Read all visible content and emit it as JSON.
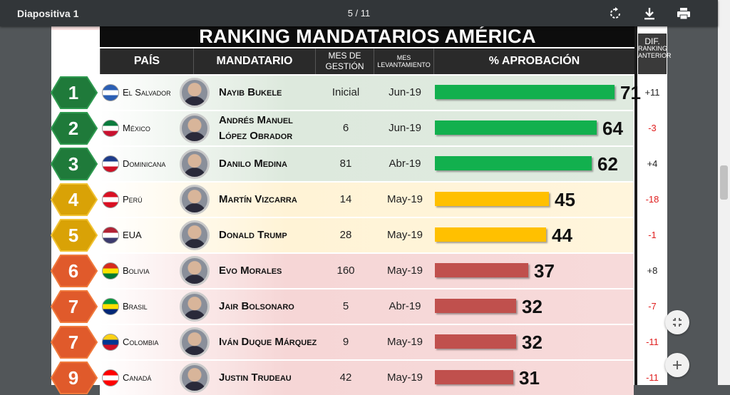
{
  "toolbar": {
    "title": "Diapositiva 1",
    "page_indicator": "5 / 11",
    "icons": [
      "rotate-icon",
      "download-icon",
      "print-icon"
    ]
  },
  "slide": {
    "banner": "RANKING MANDATARIOS AMÉRICA",
    "headers": {
      "pais": "PAÍS",
      "mandatario": "MANDATARIO",
      "mes_gestion": "MES DE GESTIÓN",
      "mes_levantamiento": "MES LEVANTAMIENTO",
      "aprobacion": "% APROBACIÓN",
      "dif_line1": "DIF.",
      "dif_line2": "RANKING ANTERIOR"
    },
    "colors": {
      "green_bar": "#12b04e",
      "yellow_bar": "#ffc000",
      "red_bar": "#c0504d",
      "green_medal": "#1f7a3a",
      "yellow_medal": "#d9a206",
      "red_medal": "#e05a2b",
      "dif_negative": "#e02020"
    },
    "rows": [
      {
        "rank": "1",
        "country": "El Salvador",
        "leader": "Nayib Bukele",
        "gestion": "Inicial",
        "lev": "Jun-19",
        "pct": "71",
        "value": 71,
        "dif": "+11",
        "tier": "green"
      },
      {
        "rank": "2",
        "country": "México",
        "leader": "Andrés Manuel López Obrador",
        "gestion": "6",
        "lev": "Jun-19",
        "pct": "64",
        "value": 64,
        "dif": "-3",
        "tier": "green"
      },
      {
        "rank": "3",
        "country": "Dominicana",
        "leader": "Danilo Medina",
        "gestion": "81",
        "lev": "Abr-19",
        "pct": "62",
        "value": 62,
        "dif": "+4",
        "tier": "green"
      },
      {
        "rank": "4",
        "country": "Perú",
        "leader": "Martín Vizcarra",
        "gestion": "14",
        "lev": "May-19",
        "pct": "45",
        "value": 45,
        "dif": "-18",
        "tier": "yellow"
      },
      {
        "rank": "5",
        "country": "EUA",
        "leader": "Donald Trump",
        "gestion": "28",
        "lev": "May-19",
        "pct": "44",
        "value": 44,
        "dif": "-1",
        "tier": "yellow"
      },
      {
        "rank": "6",
        "country": "Bolivia",
        "leader": "Evo Morales",
        "gestion": "160",
        "lev": "May-19",
        "pct": "37",
        "value": 37,
        "dif": "+8",
        "tier": "red"
      },
      {
        "rank": "7",
        "country": "Brasil",
        "leader": "Jair Bolsonaro",
        "gestion": "5",
        "lev": "Abr-19",
        "pct": "32",
        "value": 32,
        "dif": "-7",
        "tier": "red"
      },
      {
        "rank": "7",
        "country": "Colombia",
        "leader": "Iván Duque Márquez",
        "gestion": "9",
        "lev": "May-19",
        "pct": "32",
        "value": 32,
        "dif": "-11",
        "tier": "red"
      },
      {
        "rank": "9",
        "country": "Canadá",
        "leader": "Justin Trudeau",
        "gestion": "42",
        "lev": "May-19",
        "pct": "31",
        "value": 31,
        "dif": "-11",
        "tier": "red"
      }
    ]
  },
  "zoom": {
    "fit_icon": "fit-page-icon",
    "zoom_in_icon": "zoom-in-icon"
  }
}
